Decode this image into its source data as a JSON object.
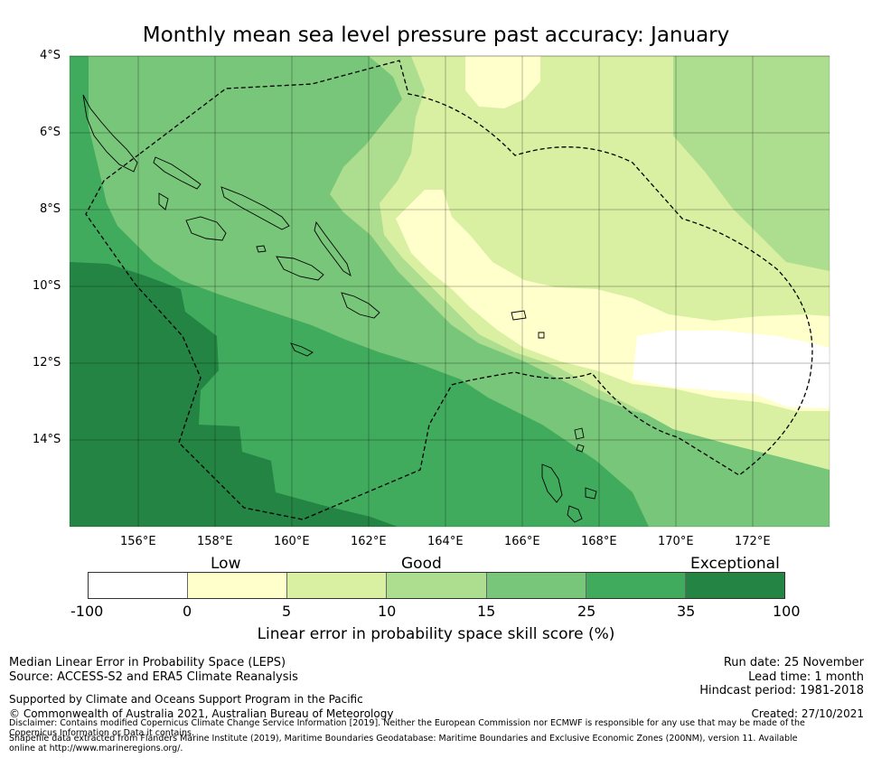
{
  "title": "Monthly mean sea level pressure past accuracy: January",
  "latitude_labels": [
    "4°S",
    "6°S",
    "8°S",
    "10°S",
    "12°S",
    "14°S"
  ],
  "longitude_labels": [
    "156°E",
    "158°E",
    "160°E",
    "162°E",
    "164°E",
    "166°E",
    "168°E",
    "170°E",
    "172°E"
  ],
  "colorbar": {
    "category_labels": [
      "Low",
      "Good",
      "Exceptional"
    ],
    "bins": [
      {
        "from": "-100",
        "to": "0",
        "color": "#ffffff"
      },
      {
        "from": "0",
        "to": "5",
        "color": "#ffffcc"
      },
      {
        "from": "5",
        "to": "10",
        "color": "#d9f0a3"
      },
      {
        "from": "10",
        "to": "15",
        "color": "#addd8e"
      },
      {
        "from": "15",
        "to": "25",
        "color": "#78c679"
      },
      {
        "from": "25",
        "to": "35",
        "color": "#41ab5d"
      },
      {
        "from": "35",
        "to": "100",
        "color": "#238443"
      }
    ],
    "tick_labels": [
      "-100",
      "0",
      "5",
      "10",
      "15",
      "25",
      "35",
      "100"
    ],
    "axis_label": "Linear error in probability space skill score (%)"
  },
  "footer": {
    "metric": "Median Linear Error in Probability Space (LEPS)",
    "source": "Source: ACCESS-S2 and ERA5 Climate Reanalysis",
    "support": "Supported by Climate and Oceans Support Program in the Pacific",
    "copyright": "© Commonwealth of Australia 2021, Australian Bureau of Meteorology",
    "disclaimer": "Disclaimer: Contains modified Copernicus Climate Change Service Information [2019]. Neither the European Commission nor ECMWF is responsible for any use that may be made of the Copernicus Information or Data it contains.",
    "shapefile": "Shapefile data extracted from Flanders Marine Institute (2019), Maritime Boundaries Geodatabase: Maritime Boundaries and Exclusive Economic Zones (200NM), version 11. Available online at http://www.marineregions.org/.",
    "run_date": "Run date: 25 November",
    "lead_time": "Lead time: 1 month",
    "hindcast": "Hindcast period: 1981-2018",
    "created": "Created: 27/10/2021"
  }
}
